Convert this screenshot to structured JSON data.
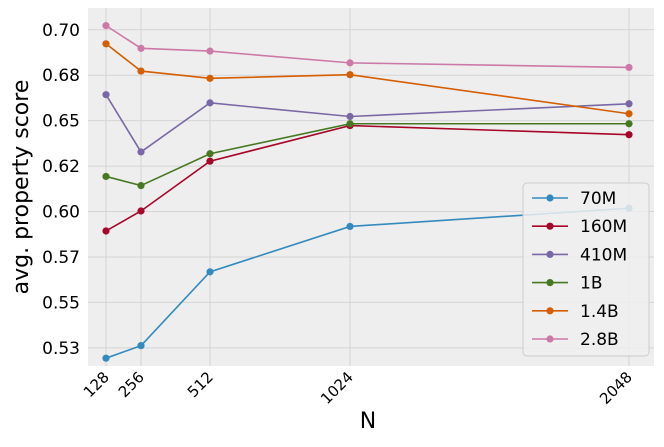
{
  "chart_data": {
    "type": "line",
    "title": "",
    "xlabel": "N",
    "ylabel": "avg. property score",
    "x": [
      128,
      256,
      512,
      1024,
      2048
    ],
    "xticks": [
      "128",
      "256",
      "512",
      "1024",
      "2048"
    ],
    "x_positions": "categorical-spaced",
    "ylim": [
      0.515,
      0.712
    ],
    "yticks": [
      0.525,
      0.55,
      0.575,
      0.6,
      0.625,
      0.65,
      0.675,
      0.7
    ],
    "ytick_labels": [
      "0.53",
      "0.55",
      "0.57",
      "0.60",
      "0.62",
      "0.65",
      "0.68",
      "0.70"
    ],
    "grid": true,
    "legend_position": "lower-right",
    "series": [
      {
        "name": "70M",
        "color": "#348ABD",
        "values": [
          0.5193,
          0.5262,
          0.5668,
          0.5918,
          0.6018
        ]
      },
      {
        "name": "160M",
        "color": "#A60628",
        "values": [
          0.5893,
          0.6003,
          0.6277,
          0.6473,
          0.6423
        ]
      },
      {
        "name": "410M",
        "color": "#7A68A6",
        "values": [
          0.6643,
          0.6328,
          0.6598,
          0.6523,
          0.6593
        ]
      },
      {
        "name": "1B",
        "color": "#467821",
        "values": [
          0.6193,
          0.6143,
          0.6318,
          0.6483,
          0.6483
        ]
      },
      {
        "name": "1.4B",
        "color": "#D55E00",
        "values": [
          0.6923,
          0.6773,
          0.6733,
          0.6753,
          0.6538
        ]
      },
      {
        "name": "2.8B",
        "color": "#CC79A7",
        "values": [
          0.7023,
          0.6898,
          0.6883,
          0.6818,
          0.6793
        ]
      }
    ]
  }
}
